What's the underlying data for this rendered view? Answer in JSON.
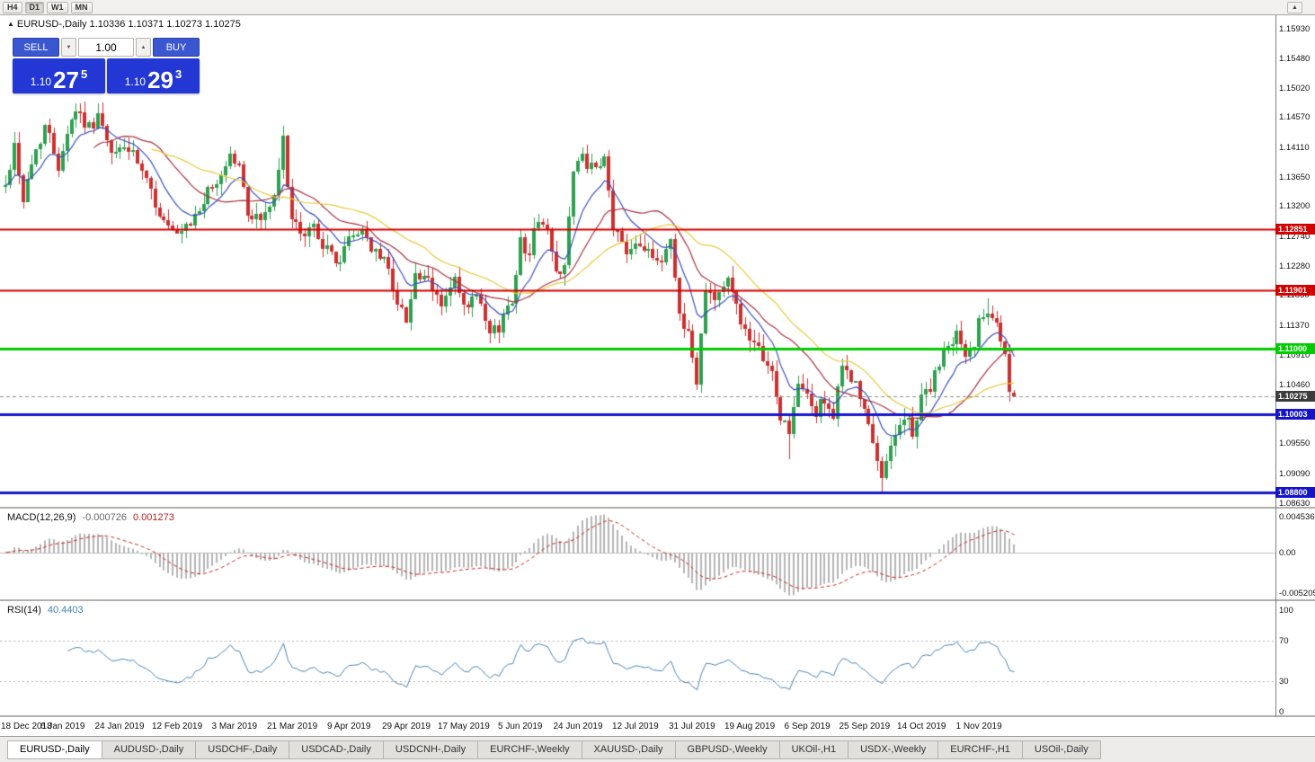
{
  "icons": {
    "up_arrow": "▲",
    "down_arrow": "▼"
  },
  "toolbar": {
    "timeframes": [
      {
        "label": "H4",
        "active": false
      },
      {
        "label": "D1",
        "active": true
      },
      {
        "label": "W1",
        "active": false
      },
      {
        "label": "MN",
        "active": false
      }
    ]
  },
  "chart": {
    "title": "EURUSD-,Daily  1.10336 1.10371 1.10273 1.10275",
    "symbol": "EURUSD-,Daily"
  },
  "trade_panel": {
    "sell_label": "SELL",
    "buy_label": "BUY",
    "volume": "1.00",
    "sell": {
      "prefix": "1.10",
      "big": "27",
      "sup": "5"
    },
    "buy": {
      "prefix": "1.10",
      "big": "29",
      "sup": "3"
    }
  },
  "price_axis": {
    "ticks": [
      "1.15930",
      "1.15480",
      "1.15020",
      "1.14570",
      "1.14110",
      "1.13650",
      "1.13200",
      "1.12740",
      "1.12280",
      "1.11830",
      "1.11370",
      "1.10910",
      "1.10460",
      "1.09550",
      "1.09090",
      "1.08630"
    ]
  },
  "levels": [
    {
      "price": 1.12851,
      "label": "1.12851",
      "color": "#d40000",
      "width": 2
    },
    {
      "price": 1.11901,
      "label": "1.11901",
      "color": "#d40000",
      "width": 2
    },
    {
      "price": 1.11,
      "label": "1.11000",
      "color": "#00cc00",
      "width": 3
    },
    {
      "price": 1.10003,
      "label": "1.10003",
      "color": "#1414cc",
      "width": 3
    },
    {
      "price": 1.088,
      "label": "1.08800",
      "color": "#1414cc",
      "width": 3
    }
  ],
  "current_price": {
    "value": 1.10275,
    "label": "1.10275",
    "color": "#3c3c3c"
  },
  "indicators": {
    "macd": {
      "label": "MACD(12,26,9)",
      "value_main": "-0.000726",
      "value_signal": "0.001273",
      "axis": [
        "0.004536",
        "0.00",
        "-0.005205"
      ],
      "params": [
        12,
        26,
        9
      ],
      "histogram_color": "#b4b4b4",
      "signal_color": "#cc2222"
    },
    "rsi": {
      "label": "RSI(14)",
      "value": "40.4403",
      "axis": [
        "100",
        "70",
        "30",
        "0"
      ],
      "levels": [
        70,
        30
      ],
      "period": 14,
      "line_color": "#4682b4"
    }
  },
  "chart_data": {
    "type": "candlestick",
    "symbol": "EURUSD",
    "timeframe": "Daily",
    "num_candles": 230,
    "seed": 42,
    "visible_range": {
      "price_top": 1.16137,
      "price_bottom": 1.08573
    },
    "last_candle_ohlc": {
      "open": 1.10336,
      "high": 1.10371,
      "low": 1.10273,
      "close": 1.10275
    },
    "anchors": [
      [
        0,
        1.135
      ],
      [
        2,
        1.1415
      ],
      [
        4,
        1.133
      ],
      [
        6,
        1.1385
      ],
      [
        9,
        1.1445
      ],
      [
        12,
        1.1385
      ],
      [
        14,
        1.1435
      ],
      [
        16,
        1.147
      ],
      [
        19,
        1.144
      ],
      [
        21,
        1.146
      ],
      [
        24,
        1.1395
      ],
      [
        27,
        1.1415
      ],
      [
        30,
        1.1385
      ],
      [
        33,
        1.134
      ],
      [
        36,
        1.1295
      ],
      [
        39,
        1.127
      ],
      [
        42,
        1.129
      ],
      [
        45,
        1.133
      ],
      [
        48,
        1.1355
      ],
      [
        51,
        1.14
      ],
      [
        53,
        1.138
      ],
      [
        55,
        1.131
      ],
      [
        58,
        1.13
      ],
      [
        61,
        1.133
      ],
      [
        63,
        1.142
      ],
      [
        65,
        1.13
      ],
      [
        67,
        1.127
      ],
      [
        70,
        1.129
      ],
      [
        73,
        1.125
      ],
      [
        76,
        1.1235
      ],
      [
        78,
        1.127
      ],
      [
        81,
        1.1285
      ],
      [
        84,
        1.1245
      ],
      [
        87,
        1.123
      ],
      [
        89,
        1.1165
      ],
      [
        91,
        1.115
      ],
      [
        93,
        1.1215
      ],
      [
        96,
        1.12
      ],
      [
        99,
        1.117
      ],
      [
        102,
        1.1205
      ],
      [
        104,
        1.116
      ],
      [
        107,
        1.118
      ],
      [
        110,
        1.112
      ],
      [
        112,
        1.1135
      ],
      [
        115,
        1.118
      ],
      [
        117,
        1.1265
      ],
      [
        119,
        1.125
      ],
      [
        121,
        1.1305
      ],
      [
        123,
        1.128
      ],
      [
        125,
        1.1215
      ],
      [
        127,
        1.1235
      ],
      [
        129,
        1.137
      ],
      [
        131,
        1.1395
      ],
      [
        134,
        1.137
      ],
      [
        136,
        1.139
      ],
      [
        138,
        1.129
      ],
      [
        141,
        1.125
      ],
      [
        143,
        1.127
      ],
      [
        146,
        1.1255
      ],
      [
        148,
        1.1225
      ],
      [
        151,
        1.127
      ],
      [
        153,
        1.1155
      ],
      [
        155,
        1.1125
      ],
      [
        157,
        1.1045
      ],
      [
        159,
        1.12
      ],
      [
        161,
        1.118
      ],
      [
        164,
        1.1205
      ],
      [
        166,
        1.117
      ],
      [
        169,
        1.1105
      ],
      [
        172,
        1.109
      ],
      [
        174,
        1.106
      ],
      [
        176,
        1.0995
      ],
      [
        178,
        1.0975
      ],
      [
        180,
        1.104
      ],
      [
        182,
        1.103
      ],
      [
        184,
        1.1
      ],
      [
        186,
        1.1025
      ],
      [
        188,
        1.0995
      ],
      [
        190,
        1.107
      ],
      [
        192,
        1.106
      ],
      [
        195,
        1.1005
      ],
      [
        197,
        1.095
      ],
      [
        199,
        1.09
      ],
      [
        201,
        1.096
      ],
      [
        203,
        1.0985
      ],
      [
        205,
        1.099
      ],
      [
        206,
        1.0965
      ],
      [
        208,
        1.103
      ],
      [
        210,
        1.104
      ],
      [
        212,
        1.1075
      ],
      [
        214,
        1.1105
      ],
      [
        216,
        1.1125
      ],
      [
        218,
        1.1085
      ],
      [
        220,
        1.111
      ],
      [
        221,
        1.115
      ],
      [
        223,
        1.1165
      ],
      [
        225,
        1.1145
      ],
      [
        227,
        1.1085
      ],
      [
        228,
        1.1038
      ],
      [
        229,
        1.10275
      ]
    ],
    "force_low": [
      [
        199,
        1.088
      ],
      [
        157,
        1.1038
      ],
      [
        178,
        1.093
      ]
    ],
    "force_high": [
      [
        16,
        1.1478
      ],
      [
        223,
        1.1178
      ],
      [
        63,
        1.1438
      ]
    ],
    "date_ticks": [
      {
        "index": 0,
        "label": "18 Dec 2018"
      },
      {
        "index": 13,
        "label": "6 Jan 2019"
      },
      {
        "index": 26,
        "label": "24 Jan 2019"
      },
      {
        "index": 39,
        "label": "12 Feb 2019"
      },
      {
        "index": 52,
        "label": "3 Mar 2019"
      },
      {
        "index": 65,
        "label": "21 Mar 2019"
      },
      {
        "index": 78,
        "label": "9 Apr 2019"
      },
      {
        "index": 91,
        "label": "29 Apr 2019"
      },
      {
        "index": 104,
        "label": "17 May 2019"
      },
      {
        "index": 117,
        "label": "5 Jun 2019"
      },
      {
        "index": 130,
        "label": "24 Jun 2019"
      },
      {
        "index": 143,
        "label": "12 Jul 2019"
      },
      {
        "index": 156,
        "label": "31 Jul 2019"
      },
      {
        "index": 169,
        "label": "19 Aug 2019"
      },
      {
        "index": 182,
        "label": "6 Sep 2019"
      },
      {
        "index": 195,
        "label": "25 Sep 2019"
      },
      {
        "index": 208,
        "label": "14 Oct 2019"
      },
      {
        "index": 221,
        "label": "1 Nov 2019"
      }
    ],
    "colors": {
      "up": "#2fa050",
      "down": "#cc3030"
    },
    "moving_averages": [
      {
        "name": "MA-fast",
        "type": "ema",
        "period": 10,
        "color": "#3b4fc0"
      },
      {
        "name": "MA-mid",
        "type": "sma",
        "period": 21,
        "color": "#a83240"
      },
      {
        "name": "MA-slow",
        "type": "sma",
        "period": 34,
        "color": "#e8c83c"
      }
    ]
  },
  "tabs": [
    {
      "label": "EURUSD-,Daily",
      "active": true
    },
    {
      "label": "AUDUSD-,Daily",
      "active": false
    },
    {
      "label": "USDCHF-,Daily",
      "active": false
    },
    {
      "label": "USDCAD-,Daily",
      "active": false
    },
    {
      "label": "USDCNH-,Daily",
      "active": false
    },
    {
      "label": "EURCHF-,Weekly",
      "active": false
    },
    {
      "label": "XAUUSD-,Daily",
      "active": false
    },
    {
      "label": "GBPUSD-,Weekly",
      "active": false
    },
    {
      "label": "UKOil-,H1",
      "active": false
    },
    {
      "label": "USDX-,Weekly",
      "active": false
    },
    {
      "label": "EURCHF-,H1",
      "active": false
    },
    {
      "label": "USOil-,Daily",
      "active": false
    }
  ]
}
